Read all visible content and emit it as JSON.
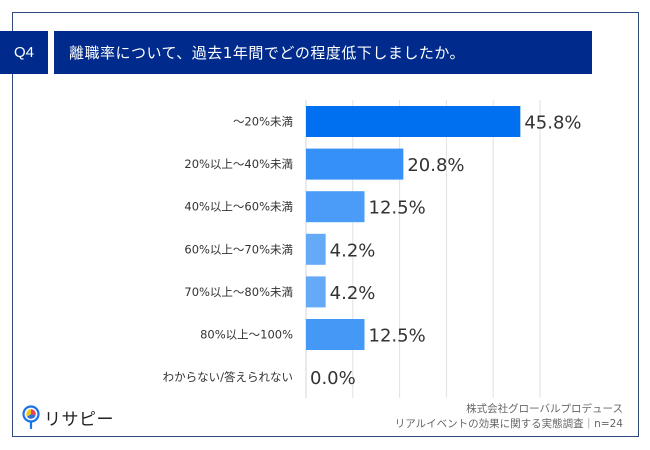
{
  "header": {
    "question_number": "Q4",
    "question_text": "離職率について、過去1年間でどの程度低下しましたか。"
  },
  "footer": {
    "company": "株式会社グローバルプロデュース",
    "survey": "リアルイベントの効果に関する実態調査｜n=24"
  },
  "logo": {
    "text": "リサピー",
    "icon": "pie-chart-pin-icon"
  },
  "colors": {
    "header_bg": "#002b8c",
    "frame": "#2f4a7a",
    "bars": [
      "#0070f0",
      "#3590f8",
      "#4a9cf8",
      "#64aaf7",
      "#64aaf7",
      "#4599f6",
      "#64aaf7"
    ]
  },
  "chart_data": {
    "type": "bar",
    "orientation": "horizontal",
    "title": "離職率について、過去1年間でどの程度低下しましたか。",
    "categories": [
      "～20%未満",
      "20%以上～40%未満",
      "40%以上～60%未満",
      "60%以上～70%未満",
      "70%以上～80%未満",
      "80%以上～100%",
      "わからない/答えられない"
    ],
    "values": [
      45.8,
      20.8,
      12.5,
      4.2,
      4.2,
      12.5,
      0.0
    ],
    "value_labels": [
      "45.8%",
      "20.8%",
      "12.5%",
      "4.2%",
      "4.2%",
      "12.5%",
      "0.0%"
    ],
    "unit": "%",
    "xlim": [
      0,
      50
    ],
    "grid": true,
    "grid_step": 10,
    "legend": "none"
  }
}
